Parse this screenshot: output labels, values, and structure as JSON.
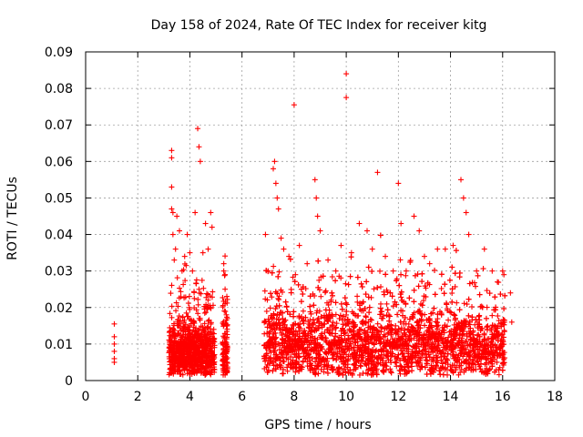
{
  "chart_data": {
    "type": "scatter",
    "title": "Day 158 of 2024, Rate Of TEC Index for receiver kitg",
    "xlabel": "GPS time / hours",
    "ylabel": "ROTI / TECUs",
    "xlim": [
      0,
      18
    ],
    "ylim": [
      0,
      0.09
    ],
    "grid": true,
    "marker": "+",
    "color": "#ff0000",
    "xticks": [
      0,
      2,
      4,
      6,
      8,
      10,
      12,
      14,
      16,
      18
    ],
    "xtick_labels": [
      "0",
      "2",
      "4",
      "6",
      "8",
      "10",
      "12",
      "14",
      "16",
      "18"
    ],
    "yticks": [
      0,
      0.01,
      0.02,
      0.03,
      0.04,
      0.05,
      0.06,
      0.07,
      0.08,
      0.09
    ],
    "ytick_labels": [
      "0",
      "0.01",
      "0.02",
      "0.03",
      "0.04",
      "0.05",
      "0.06",
      "0.07",
      "0.08",
      "0.09"
    ],
    "series": [
      {
        "name": "ROTI",
        "x": [
          1.1,
          1.1,
          1.1,
          1.1,
          1.1,
          1.1,
          3.3,
          3.3,
          3.3,
          3.3,
          3.35,
          3.35,
          3.4,
          3.45,
          3.5,
          3.6,
          3.7,
          3.8,
          3.9,
          4.0,
          4.1,
          4.2,
          4.3,
          4.35,
          4.4,
          4.5,
          4.6,
          4.7,
          4.8,
          4.85,
          5.3,
          5.3,
          5.35,
          5.35,
          5.4,
          5.4,
          6.9,
          7.0,
          7.2,
          7.25,
          7.3,
          7.35,
          7.4,
          7.5,
          7.6,
          7.8,
          8.0,
          8.05,
          8.2,
          8.5,
          8.8,
          8.85,
          8.9,
          9.0,
          9.3,
          9.6,
          9.8,
          10.0,
          10.0,
          10.2,
          10.5,
          10.8,
          11.0,
          11.2,
          11.5,
          11.8,
          12.0,
          12.1,
          12.3,
          12.6,
          12.8,
          13.0,
          13.2,
          13.5,
          13.8,
          14.1,
          14.4,
          14.5,
          14.6,
          14.7,
          15.0,
          15.3,
          15.6,
          15.8,
          16.0,
          16.05,
          16.3,
          16.35
        ],
        "y": [
          0.0155,
          0.012,
          0.01,
          0.008,
          0.006,
          0.005,
          0.063,
          0.061,
          0.053,
          0.047,
          0.046,
          0.04,
          0.033,
          0.036,
          0.045,
          0.041,
          0.03,
          0.034,
          0.04,
          0.035,
          0.03,
          0.046,
          0.069,
          0.064,
          0.06,
          0.035,
          0.043,
          0.036,
          0.046,
          0.042,
          0.032,
          0.03,
          0.029,
          0.021,
          0.018,
          0.015,
          0.04,
          0.03,
          0.058,
          0.06,
          0.054,
          0.05,
          0.047,
          0.039,
          0.036,
          0.034,
          0.0755,
          0.029,
          0.037,
          0.032,
          0.055,
          0.05,
          0.045,
          0.041,
          0.033,
          0.03,
          0.037,
          0.084,
          0.0775,
          0.035,
          0.043,
          0.041,
          0.036,
          0.057,
          0.034,
          0.03,
          0.054,
          0.043,
          0.03,
          0.045,
          0.041,
          0.034,
          0.032,
          0.036,
          0.036,
          0.037,
          0.055,
          0.05,
          0.046,
          0.04,
          0.03,
          0.036,
          0.03,
          0.027,
          0.03,
          0.029,
          0.024,
          0.016
        ]
      }
    ]
  }
}
